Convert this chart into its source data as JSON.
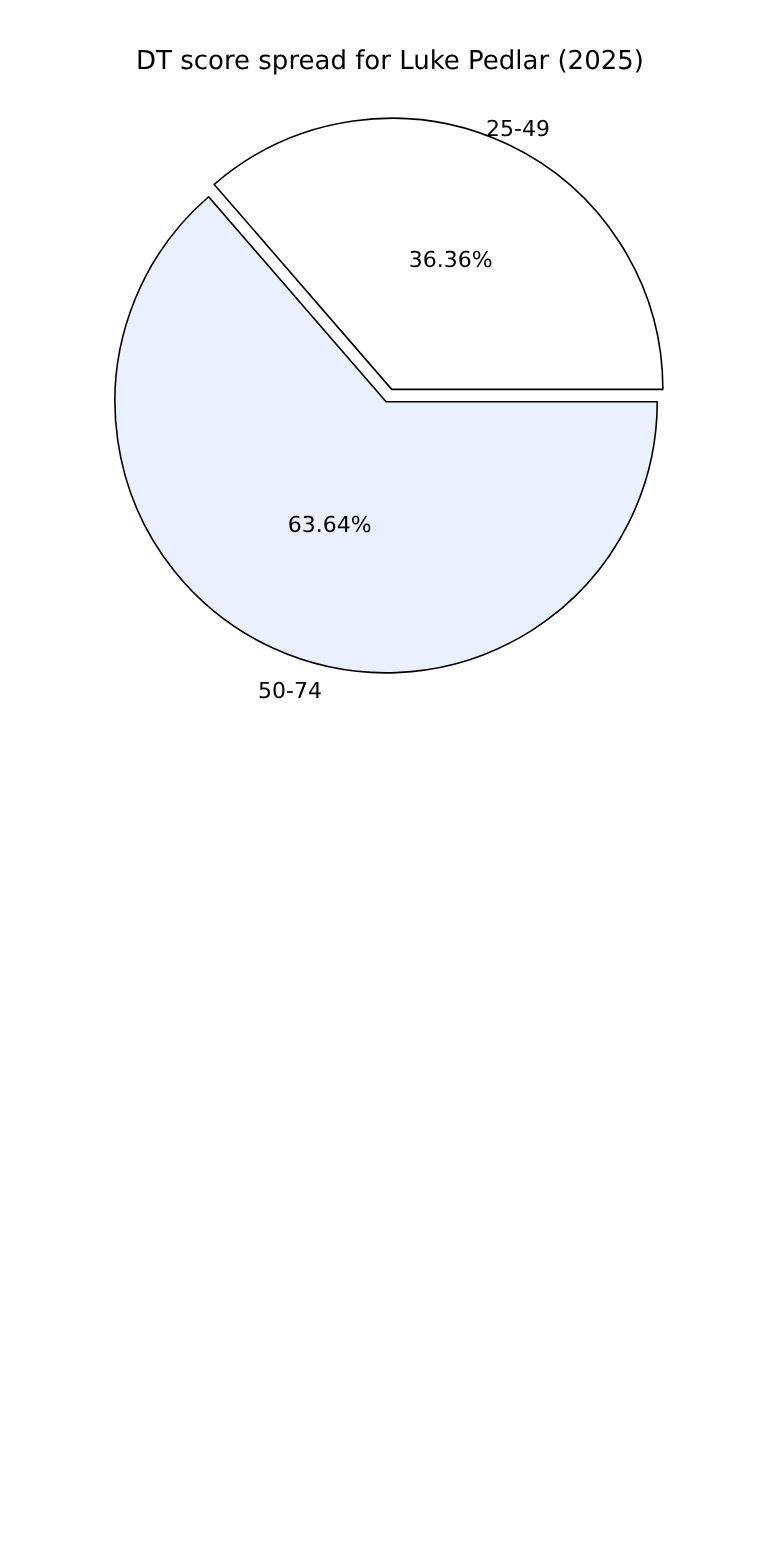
{
  "chart_data": {
    "type": "pie",
    "title": "DT score spread for Luke Pedlar (2025)",
    "categories": [
      "25-49",
      "50-74"
    ],
    "values": [
      36.36,
      63.64
    ],
    "colors": [
      "#ffffff",
      "#eaf0fd"
    ],
    "value_labels": [
      "36.36%",
      "63.64%"
    ],
    "legend": false
  }
}
